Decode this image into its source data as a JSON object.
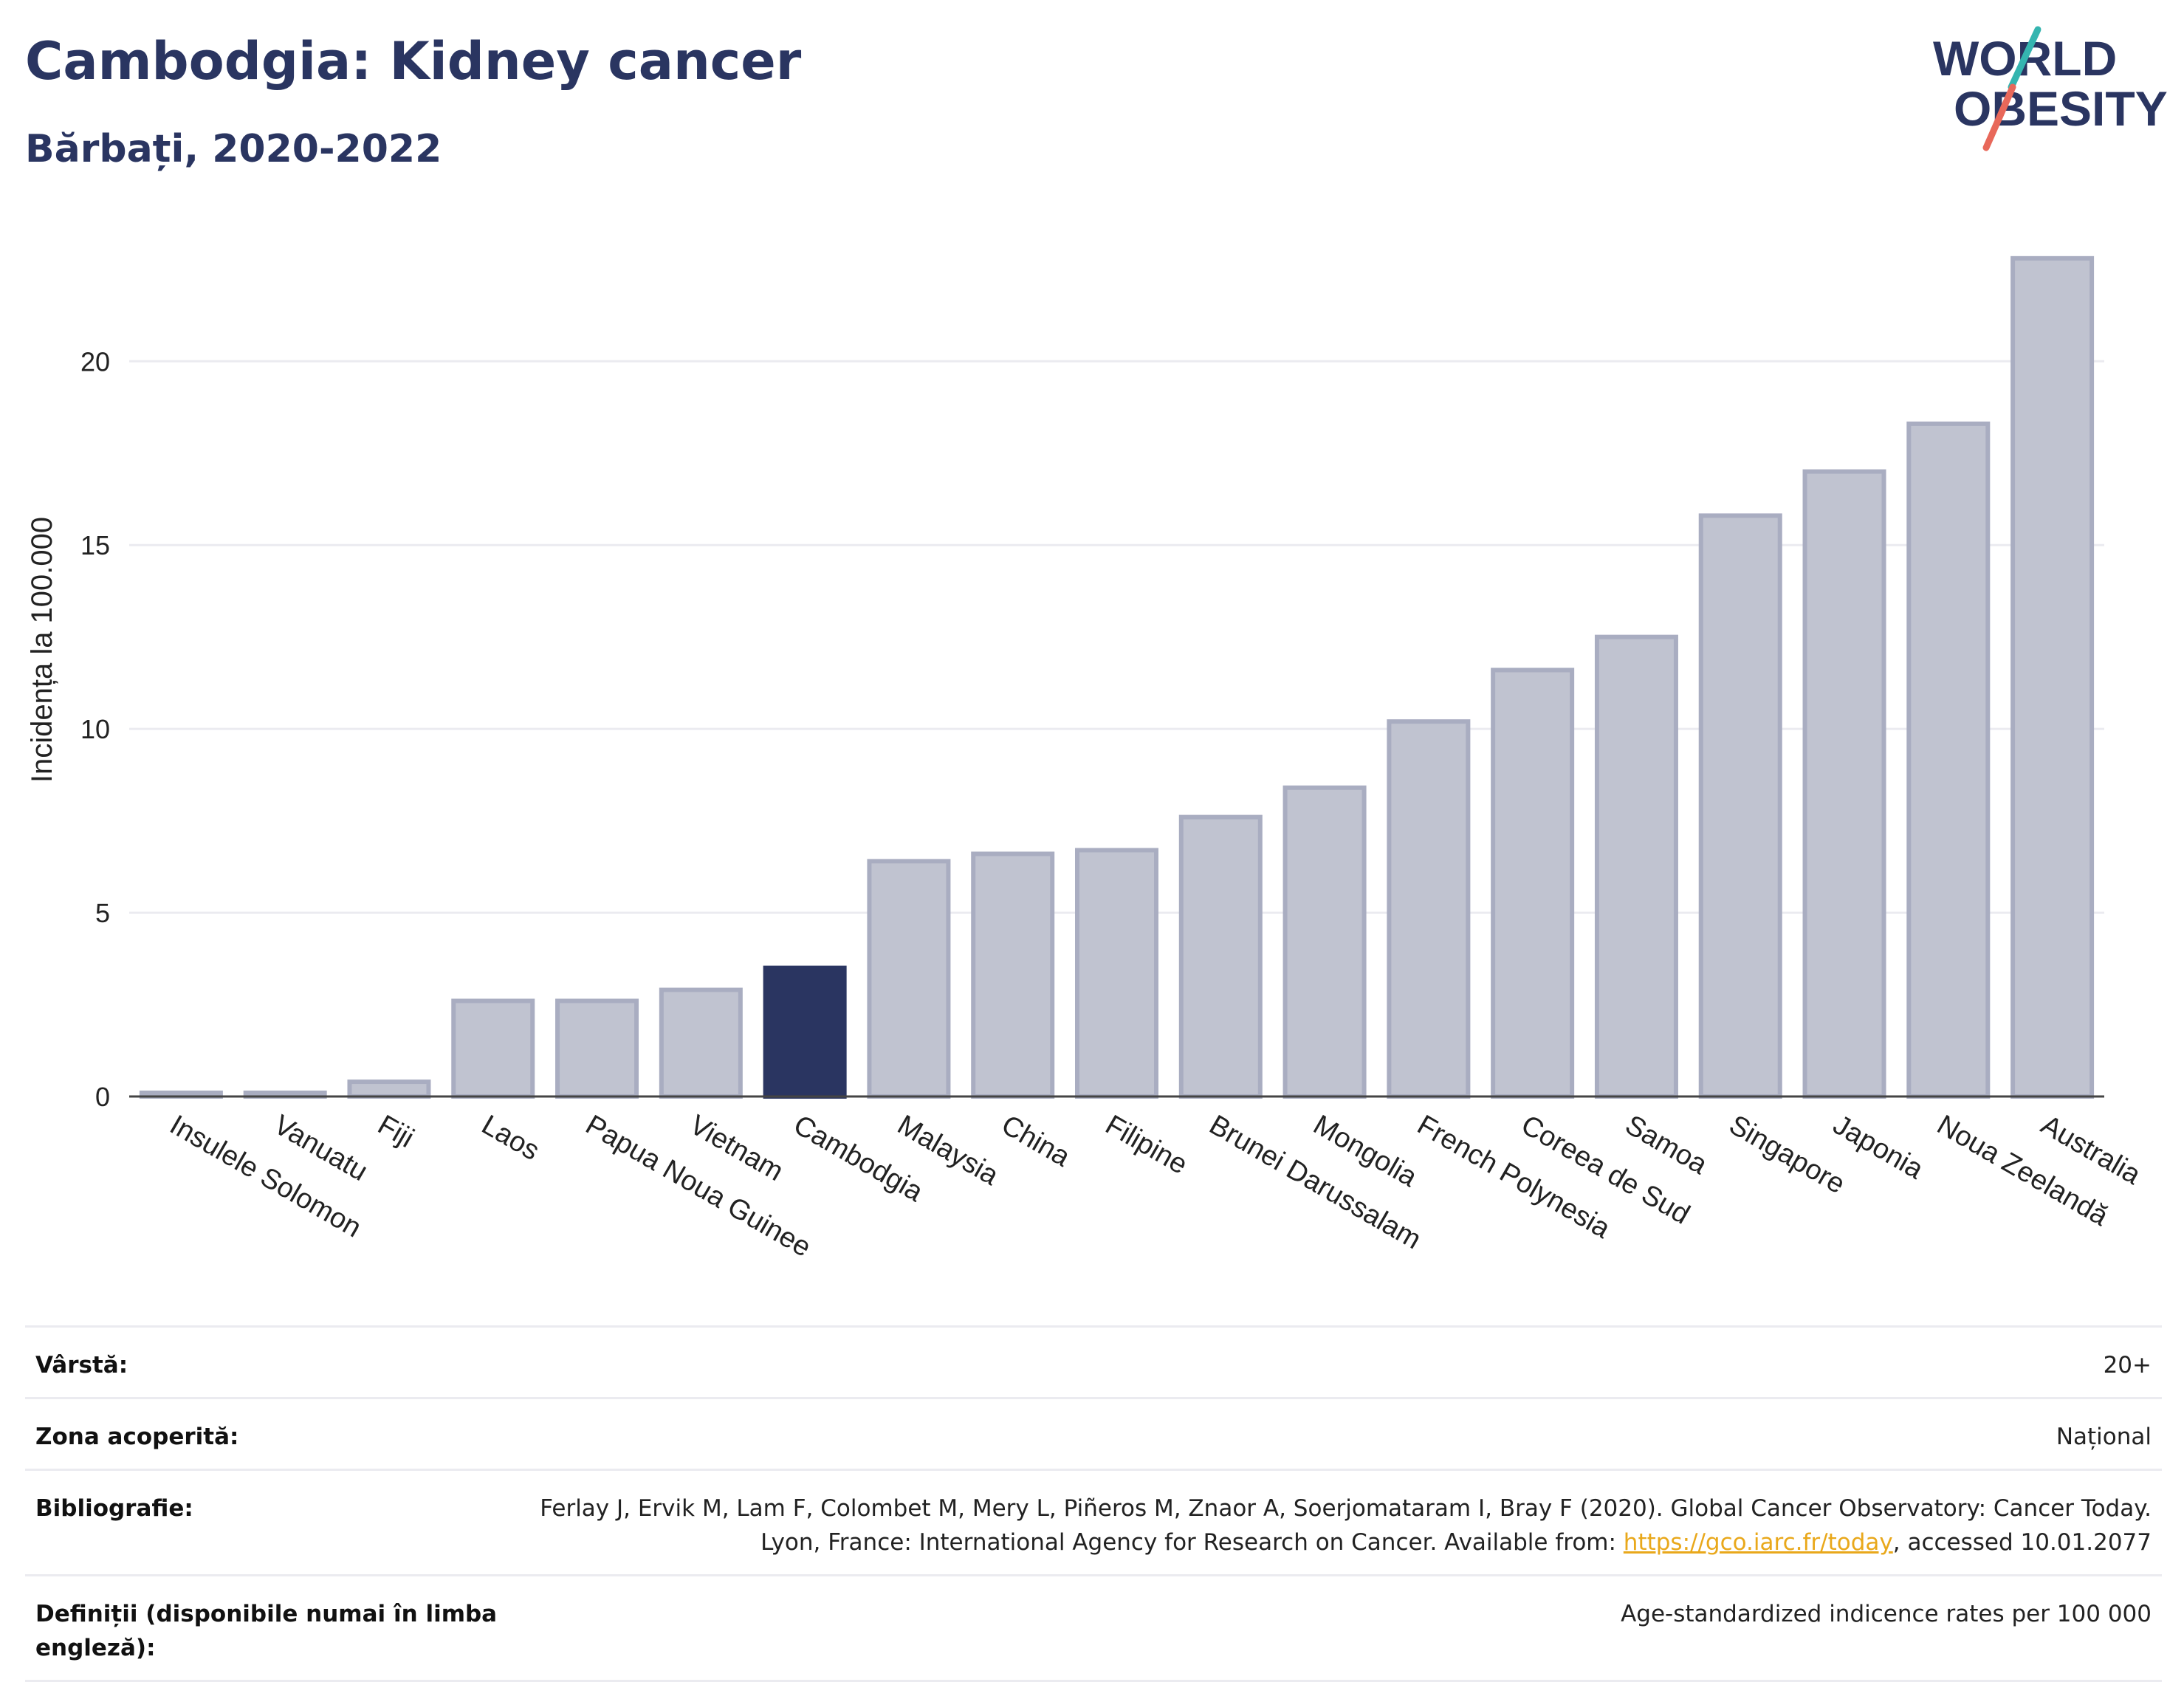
{
  "header": {
    "title": "Cambodgia: Kidney cancer",
    "subtitle": "Bărbați, 2020-2022",
    "logo_line1": "WORLD",
    "logo_line2": "OBESITY"
  },
  "colors": {
    "title": "#2a3561",
    "highlight_bar": "#2a3561",
    "other_bar": "#c0c3d0",
    "bar_border": "#a9adc1",
    "grid": "#ebebf0",
    "link": "#e9a81b",
    "logo_slash_teal": "#35b5b0",
    "logo_slash_coral": "#e8685a"
  },
  "chart_data": {
    "type": "bar",
    "ylabel": "Incidența la 100.000",
    "xlabel": "",
    "ylim": [
      0,
      23.5
    ],
    "yticks": [
      0,
      5,
      10,
      15,
      20
    ],
    "grid": true,
    "highlight": "Cambodgia",
    "categories": [
      "Insulele Solomon",
      "Vanuatu",
      "Fiji",
      "Laos",
      "Papua Noua Guinee",
      "Vietnam",
      "Cambodgia",
      "Malaysia",
      "China",
      "Filipine",
      "Brunei Darussalam",
      "Mongolia",
      "French Polynesia",
      "Coreea de Sud",
      "Samoa",
      "Singapore",
      "Japonia",
      "Noua Zeelandă",
      "Australia"
    ],
    "values": [
      0.1,
      0.1,
      0.4,
      2.6,
      2.6,
      2.9,
      3.5,
      6.4,
      6.6,
      6.7,
      7.6,
      8.4,
      10.2,
      11.6,
      12.5,
      15.8,
      17.0,
      18.3,
      22.8
    ]
  },
  "meta": {
    "age_label": "Vârstă:",
    "age_value": "20+",
    "area_label": "Zona acoperită:",
    "area_value": "Național",
    "biblio_label": "Bibliografie:",
    "biblio_text": "Ferlay J, Ervik M, Lam F, Colombet M, Mery L, Piñeros M, Znaor A, Soerjomataram I, Bray F (2020). Global Cancer Observatory: Cancer Today. Lyon, France: International Agency for Research on Cancer. Available from: ",
    "biblio_link": "https://gco.iarc.fr/today",
    "biblio_suffix": ", accessed 10.01.2077",
    "def_label": "Definiții (disponibile numai în limba engleză):",
    "def_value": "Age-standardized indicence rates per 100 000"
  }
}
